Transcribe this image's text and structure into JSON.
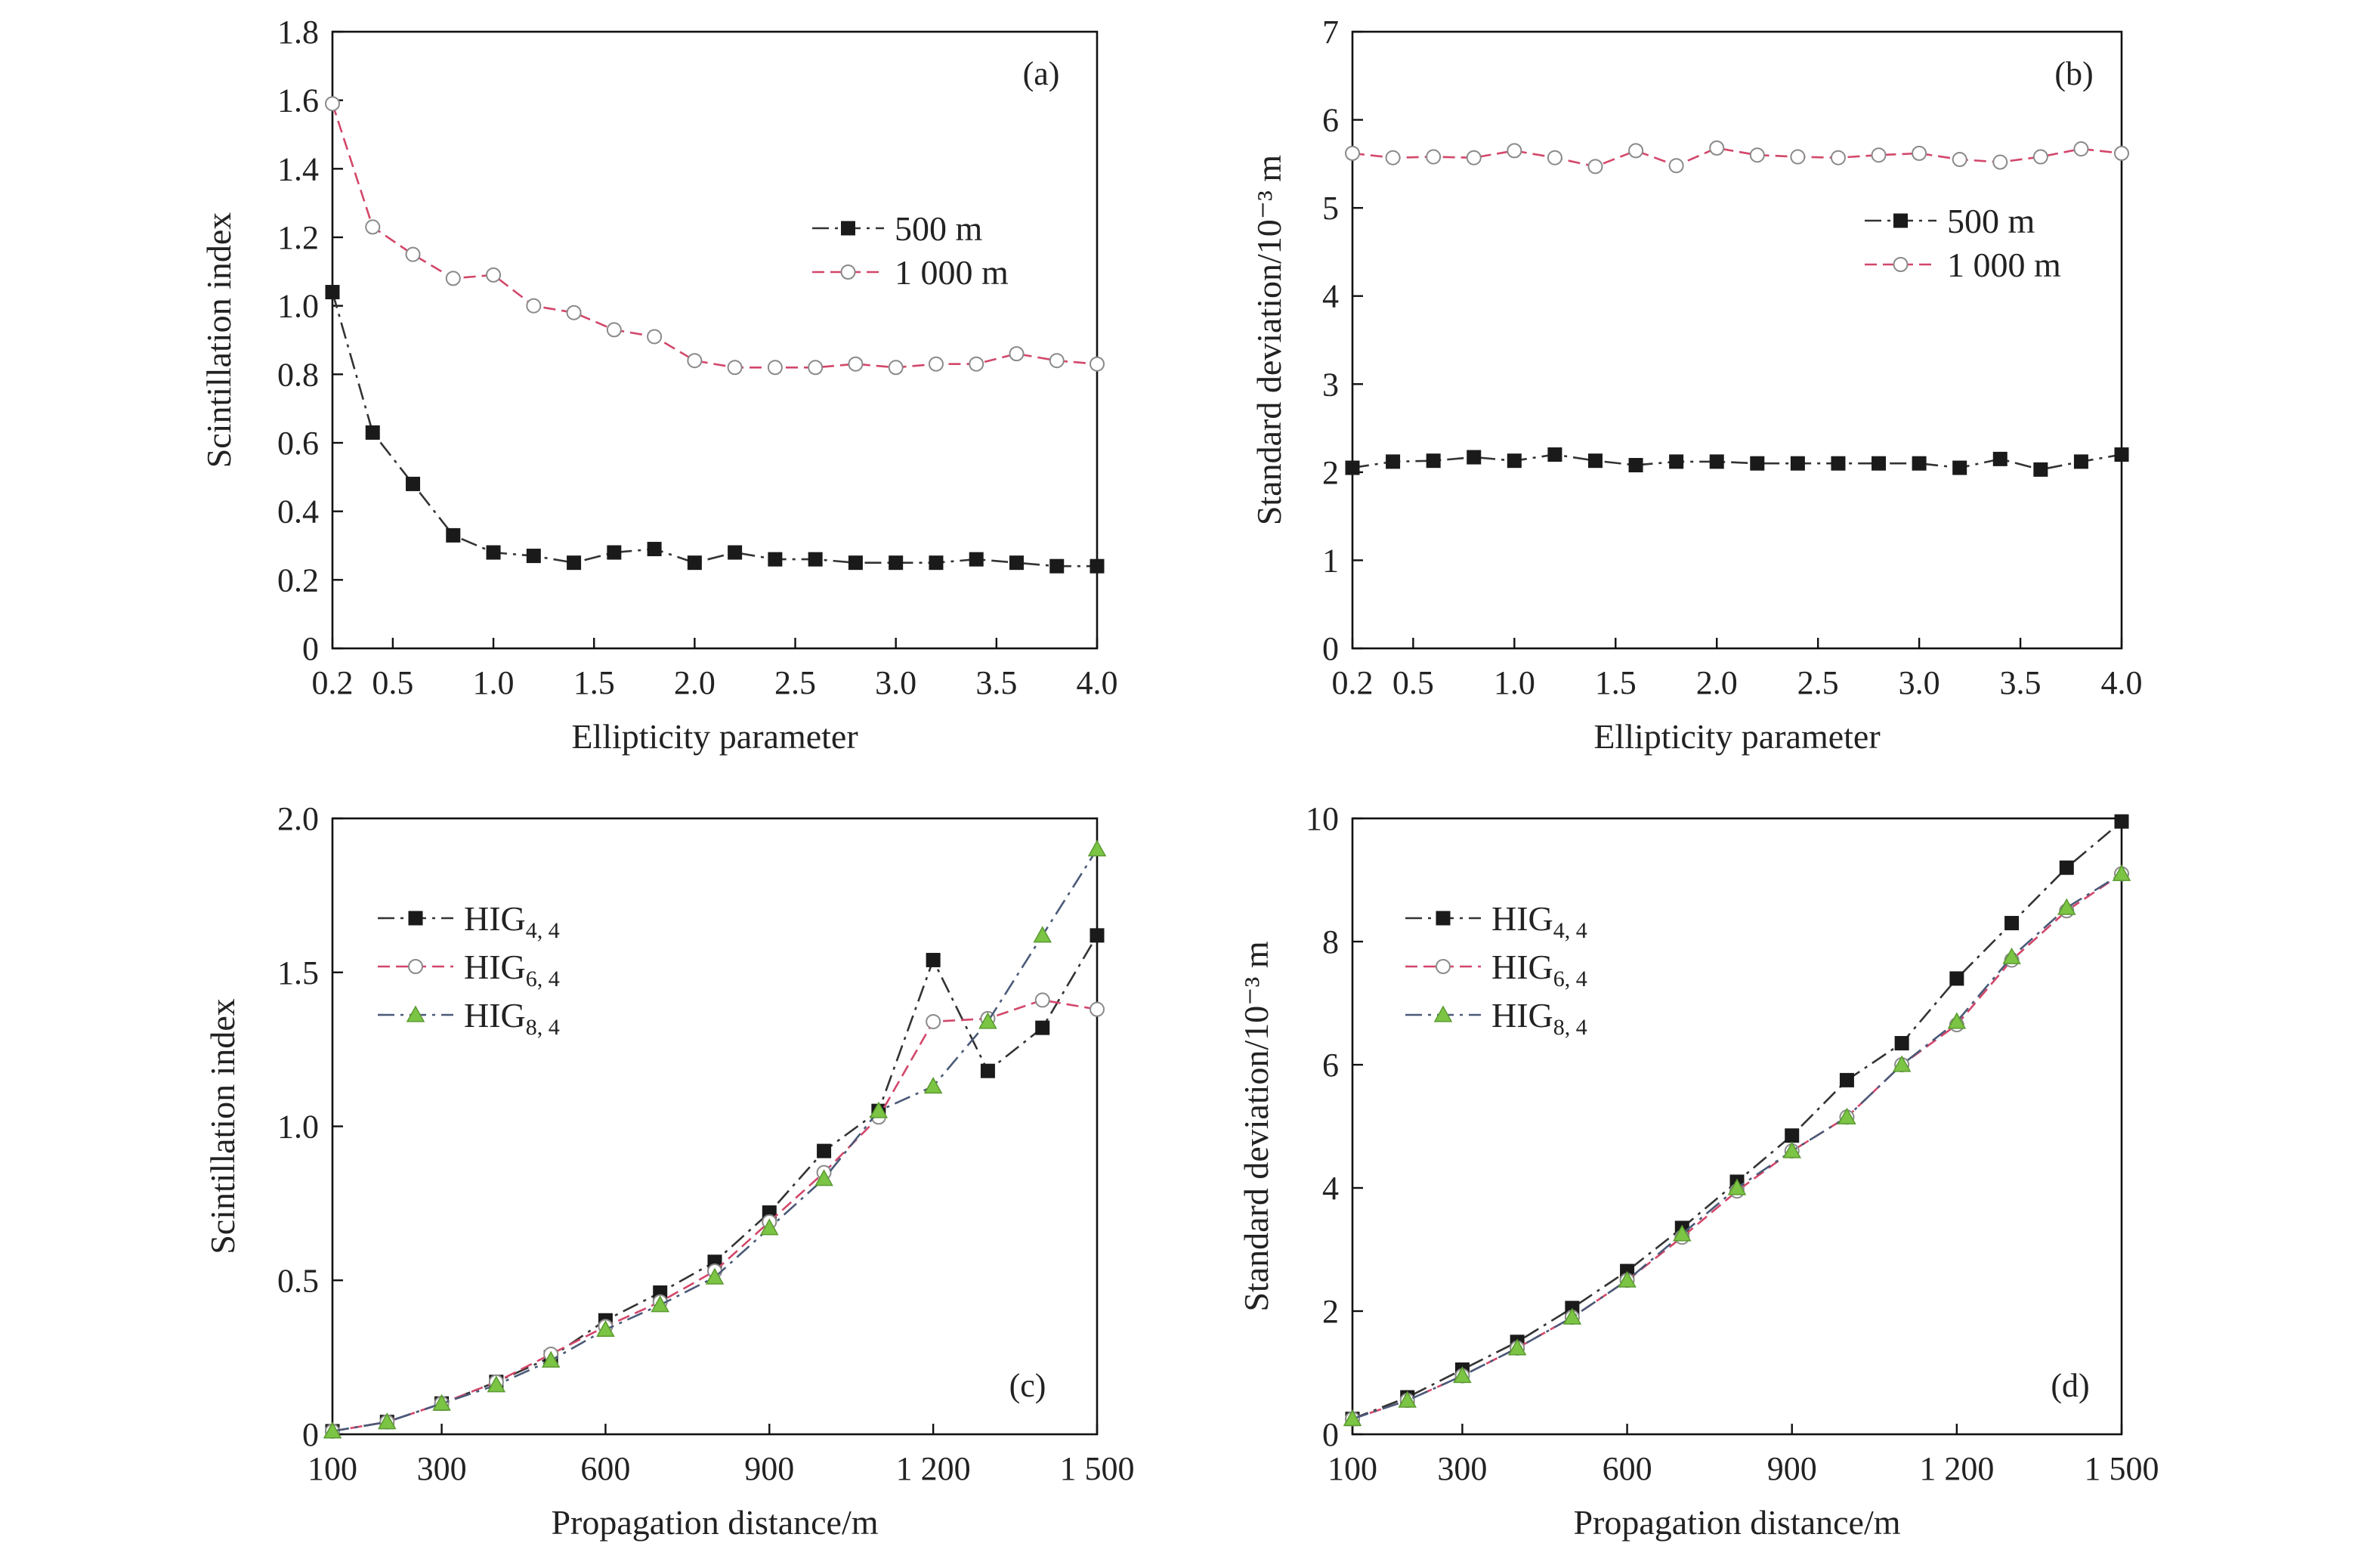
{
  "colors": {
    "black_series": "#1a1a1a",
    "pink_series": "#d2476a",
    "purple_series": "#8a5aa8",
    "green_marker": "#7cc444",
    "green_line": "#5a6a7a",
    "axis": "#111111",
    "background": "#ffffff"
  },
  "chart_data": [
    {
      "type": "line",
      "panel_label": "(a)",
      "xlabel": "Ellipticity parameter",
      "ylabel": "Scintillation index",
      "xlim": [
        0.2,
        4.0
      ],
      "ylim": [
        0,
        1.8
      ],
      "x_ticks": [
        0.2,
        0.5,
        1.0,
        1.5,
        2.0,
        2.5,
        3.0,
        3.5,
        4.0
      ],
      "x_tick_labels": [
        "0.2",
        "0.5",
        "1.0",
        "1.5",
        "2.0",
        "2.5",
        "3.0",
        "3.5",
        "4.0"
      ],
      "y_ticks": [
        0,
        0.2,
        0.4,
        0.6,
        0.8,
        1.0,
        1.2,
        1.4,
        1.6,
        1.8
      ],
      "y_tick_labels": [
        "0",
        "0.2",
        "0.4",
        "0.6",
        "0.8",
        "1.0",
        "1.2",
        "1.4",
        "1.6",
        "1.8"
      ],
      "legend_position": "right-middle",
      "grid": false,
      "series": [
        {
          "name": "500 m",
          "marker": "square",
          "color": "#1a1a1a",
          "x": [
            0.2,
            0.4,
            0.6,
            0.8,
            1.0,
            1.2,
            1.4,
            1.6,
            1.8,
            2.0,
            2.2,
            2.4,
            2.6,
            2.8,
            3.0,
            3.2,
            3.4,
            3.6,
            3.8,
            4.0
          ],
          "y": [
            1.04,
            0.63,
            0.48,
            0.33,
            0.28,
            0.27,
            0.25,
            0.28,
            0.29,
            0.25,
            0.28,
            0.26,
            0.26,
            0.25,
            0.25,
            0.25,
            0.26,
            0.25,
            0.24,
            0.24
          ]
        },
        {
          "name": "1 000 m",
          "marker": "circle",
          "color": "#d2476a",
          "x": [
            0.2,
            0.4,
            0.6,
            0.8,
            1.0,
            1.2,
            1.4,
            1.6,
            1.8,
            2.0,
            2.2,
            2.4,
            2.6,
            2.8,
            3.0,
            3.2,
            3.4,
            3.6,
            3.8,
            4.0
          ],
          "y": [
            1.59,
            1.23,
            1.15,
            1.08,
            1.09,
            1.0,
            0.98,
            0.93,
            0.91,
            0.84,
            0.82,
            0.82,
            0.82,
            0.83,
            0.82,
            0.83,
            0.83,
            0.86,
            0.84,
            0.83
          ]
        }
      ]
    },
    {
      "type": "line",
      "panel_label": "(b)",
      "xlabel": "Ellipticity parameter",
      "ylabel": "Standard deviation/10⁻³ m",
      "xlim": [
        0.2,
        4.0
      ],
      "ylim": [
        0,
        7
      ],
      "x_ticks": [
        0.2,
        0.5,
        1.0,
        1.5,
        2.0,
        2.5,
        3.0,
        3.5,
        4.0
      ],
      "x_tick_labels": [
        "0.2",
        "0.5",
        "1.0",
        "1.5",
        "2.0",
        "2.5",
        "3.0",
        "3.5",
        "4.0"
      ],
      "y_ticks": [
        0,
        1,
        2,
        3,
        4,
        5,
        6,
        7
      ],
      "y_tick_labels": [
        "0",
        "1",
        "2",
        "3",
        "4",
        "5",
        "6",
        "7"
      ],
      "legend_position": "right-upper",
      "grid": false,
      "series": [
        {
          "name": "500 m",
          "marker": "square",
          "color": "#1a1a1a",
          "x": [
            0.2,
            0.4,
            0.6,
            0.8,
            1.0,
            1.2,
            1.4,
            1.6,
            1.8,
            2.0,
            2.2,
            2.4,
            2.6,
            2.8,
            3.0,
            3.2,
            3.4,
            3.6,
            3.8,
            4.0
          ],
          "y": [
            2.05,
            2.12,
            2.13,
            2.17,
            2.13,
            2.2,
            2.13,
            2.08,
            2.12,
            2.12,
            2.1,
            2.1,
            2.1,
            2.1,
            2.1,
            2.05,
            2.15,
            2.03,
            2.12,
            2.2
          ]
        },
        {
          "name": "1 000 m",
          "marker": "circle",
          "color": "#d2476a",
          "x": [
            0.2,
            0.4,
            0.6,
            0.8,
            1.0,
            1.2,
            1.4,
            1.6,
            1.8,
            2.0,
            2.2,
            2.4,
            2.6,
            2.8,
            3.0,
            3.2,
            3.4,
            3.6,
            3.8,
            4.0
          ],
          "y": [
            5.62,
            5.57,
            5.58,
            5.57,
            5.65,
            5.57,
            5.47,
            5.65,
            5.48,
            5.68,
            5.6,
            5.58,
            5.57,
            5.6,
            5.62,
            5.55,
            5.52,
            5.58,
            5.67,
            5.62
          ]
        }
      ]
    },
    {
      "type": "line",
      "panel_label": "(c)",
      "xlabel": "Propagation distance/m",
      "ylabel": "Scintillation index",
      "xlim": [
        100,
        1500
      ],
      "ylim": [
        0,
        2.0
      ],
      "x_ticks": [
        100,
        300,
        600,
        900,
        1200,
        1500
      ],
      "x_tick_labels": [
        "100",
        "300",
        "600",
        "900",
        "1 200",
        "1 500"
      ],
      "y_ticks": [
        0,
        0.5,
        1.0,
        1.5,
        2.0
      ],
      "y_tick_labels": [
        "0",
        "0.5",
        "1.0",
        "1.5",
        "2.0"
      ],
      "legend_position": "top-left",
      "grid": false,
      "series": [
        {
          "name": "HIG",
          "subscript": "4, 4",
          "marker": "square",
          "color": "#1a1a1a",
          "x": [
            100,
            200,
            300,
            400,
            500,
            600,
            700,
            800,
            900,
            1000,
            1100,
            1200,
            1300,
            1400,
            1500
          ],
          "y": [
            0.01,
            0.04,
            0.1,
            0.17,
            0.25,
            0.37,
            0.46,
            0.56,
            0.72,
            0.92,
            1.05,
            1.54,
            1.18,
            1.32,
            1.62
          ]
        },
        {
          "name": "HIG",
          "subscript": "6, 4",
          "marker": "circle",
          "color": "#d2476a",
          "x": [
            100,
            200,
            300,
            400,
            500,
            600,
            700,
            800,
            900,
            1000,
            1100,
            1200,
            1300,
            1400,
            1500
          ],
          "y": [
            0.01,
            0.04,
            0.1,
            0.17,
            0.26,
            0.35,
            0.43,
            0.53,
            0.69,
            0.85,
            1.03,
            1.34,
            1.35,
            1.41,
            1.38
          ]
        },
        {
          "name": "HIG",
          "subscript": "8, 4",
          "marker": "triangle",
          "color": "#7cc444",
          "x": [
            100,
            200,
            300,
            400,
            500,
            600,
            700,
            800,
            900,
            1000,
            1100,
            1200,
            1300,
            1400,
            1500
          ],
          "y": [
            0.01,
            0.04,
            0.1,
            0.16,
            0.24,
            0.34,
            0.42,
            0.51,
            0.67,
            0.83,
            1.05,
            1.13,
            1.34,
            1.62,
            1.9
          ]
        }
      ]
    },
    {
      "type": "line",
      "panel_label": "(d)",
      "xlabel": "Propagation distance/m",
      "ylabel": "Standard deviation/10⁻³ m",
      "xlim": [
        100,
        1500
      ],
      "ylim": [
        0,
        10
      ],
      "x_ticks": [
        100,
        300,
        600,
        900,
        1200,
        1500
      ],
      "x_tick_labels": [
        "100",
        "300",
        "600",
        "900",
        "1 200",
        "1 500"
      ],
      "y_ticks": [
        0,
        2,
        4,
        6,
        8,
        10
      ],
      "y_tick_labels": [
        "0",
        "2",
        "4",
        "6",
        "8",
        "10"
      ],
      "legend_position": "top-left",
      "grid": false,
      "series": [
        {
          "name": "HIG",
          "subscript": "4, 4",
          "marker": "square",
          "color": "#1a1a1a",
          "x": [
            100,
            200,
            300,
            400,
            500,
            600,
            700,
            800,
            900,
            1000,
            1100,
            1200,
            1300,
            1400,
            1500
          ],
          "y": [
            0.25,
            0.6,
            1.05,
            1.5,
            2.05,
            2.65,
            3.35,
            4.1,
            4.85,
            5.75,
            6.35,
            7.4,
            8.3,
            9.2,
            9.95
          ]
        },
        {
          "name": "HIG",
          "subscript": "6, 4",
          "marker": "circle",
          "color": "#d2476a",
          "x": [
            100,
            200,
            300,
            400,
            500,
            600,
            700,
            800,
            900,
            1000,
            1100,
            1200,
            1300,
            1400,
            1500
          ],
          "y": [
            0.25,
            0.55,
            0.95,
            1.4,
            1.9,
            2.5,
            3.2,
            3.95,
            4.6,
            5.15,
            6.0,
            6.65,
            7.7,
            8.5,
            9.1
          ]
        },
        {
          "name": "HIG",
          "subscript": "8, 4",
          "marker": "triangle",
          "color": "#7cc444",
          "x": [
            100,
            200,
            300,
            400,
            500,
            600,
            700,
            800,
            900,
            1000,
            1100,
            1200,
            1300,
            1400,
            1500
          ],
          "y": [
            0.25,
            0.55,
            0.95,
            1.4,
            1.9,
            2.5,
            3.25,
            4.0,
            4.6,
            5.15,
            6.0,
            6.7,
            7.75,
            8.55,
            9.1
          ]
        }
      ]
    }
  ]
}
